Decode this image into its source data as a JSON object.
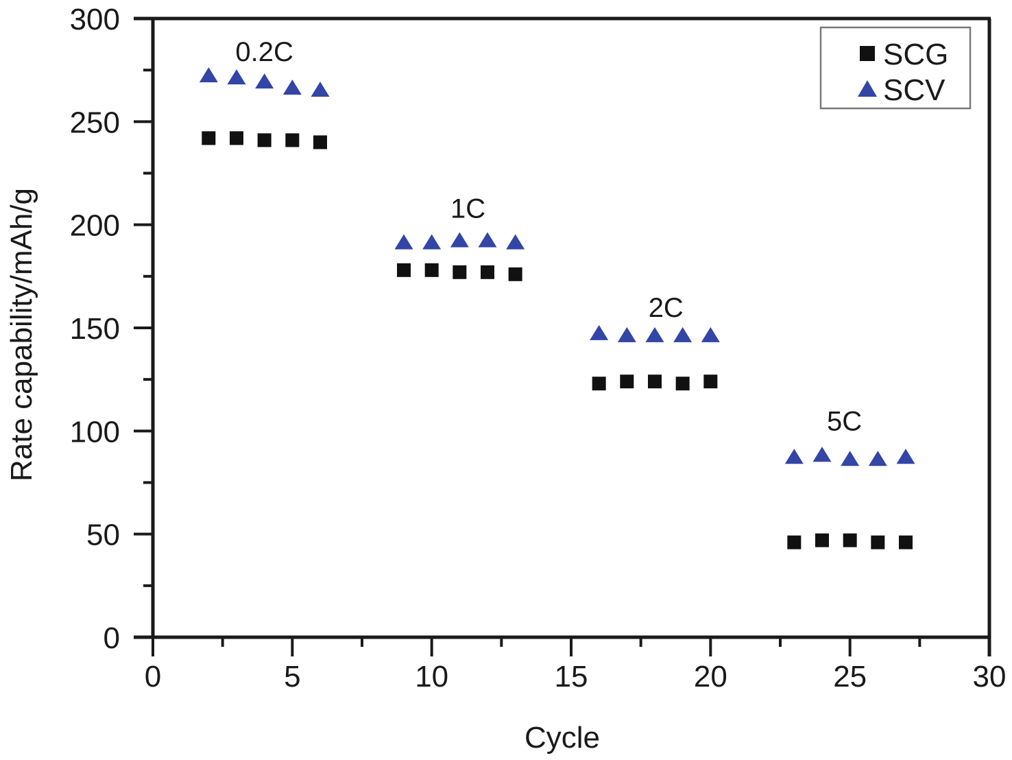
{
  "chart_data": {
    "type": "scatter",
    "title": "",
    "xlabel": "Cycle",
    "ylabel": "Rate capability/mAh/g",
    "xlim": [
      0,
      30
    ],
    "ylim": [
      0,
      300
    ],
    "xticks": [
      0,
      5,
      10,
      15,
      20,
      25,
      30
    ],
    "yticks": [
      0,
      50,
      100,
      150,
      200,
      250,
      300
    ],
    "xticks_labels": [
      "0",
      "5",
      "10",
      "15",
      "20",
      "25",
      "30"
    ],
    "yticks_labels": [
      "0",
      "50",
      "100",
      "150",
      "200",
      "250",
      "300"
    ],
    "grid": false,
    "legend_position": "top-right",
    "series": [
      {
        "name": "SCG",
        "marker": "square",
        "color": "#111111",
        "x": [
          2,
          3,
          4,
          5,
          6,
          9,
          10,
          11,
          12,
          13,
          16,
          17,
          18,
          19,
          20,
          23,
          24,
          25,
          26,
          27
        ],
        "y": [
          242,
          242,
          241,
          241,
          240,
          178,
          178,
          177,
          177,
          176,
          123,
          124,
          124,
          123,
          124,
          46,
          47,
          47,
          46,
          46
        ]
      },
      {
        "name": "SCV",
        "marker": "triangle",
        "color": "#3345a6",
        "x": [
          2,
          3,
          4,
          5,
          6,
          9,
          10,
          11,
          12,
          13,
          16,
          17,
          18,
          19,
          20,
          23,
          24,
          25,
          26,
          27
        ],
        "y": [
          272,
          271,
          269,
          266,
          265,
          191,
          191,
          192,
          192,
          191,
          147,
          146,
          146,
          146,
          146,
          87,
          88,
          86,
          86,
          87
        ]
      }
    ],
    "annotations": [
      {
        "text": "0.2C",
        "x": 4,
        "y": 284
      },
      {
        "text": "1C",
        "x": 11.3,
        "y": 208
      },
      {
        "text": "2C",
        "x": 18.4,
        "y": 160
      },
      {
        "text": "5C",
        "x": 24.8,
        "y": 105
      }
    ]
  }
}
